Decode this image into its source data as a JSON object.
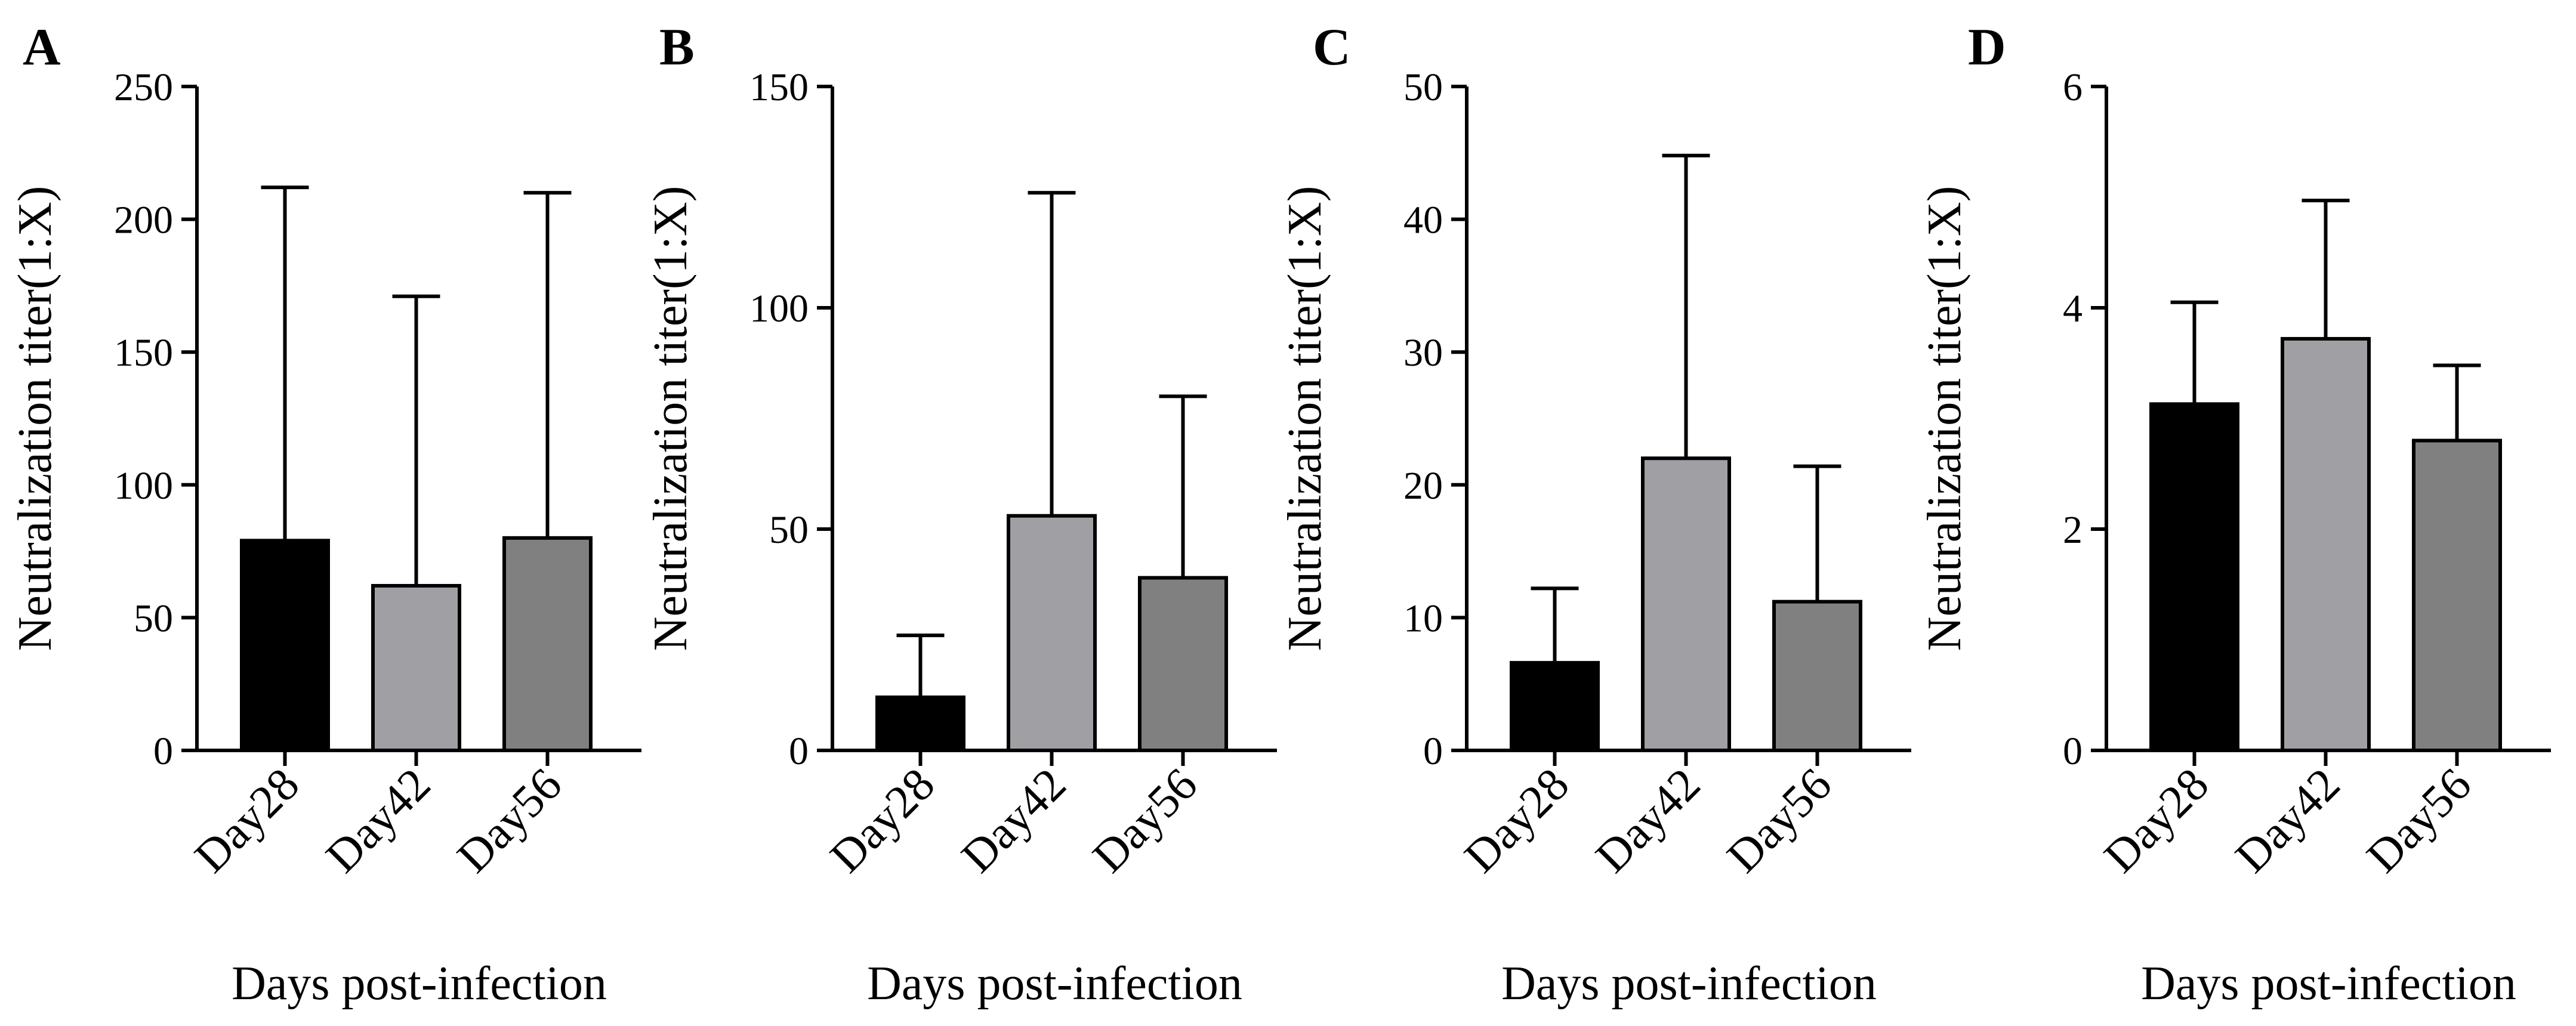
{
  "chart_data": [
    {
      "type": "bar",
      "panel": "A",
      "categories": [
        "Day28",
        "Day42",
        "Day56"
      ],
      "values": [
        79,
        62,
        80
      ],
      "errors": [
        133,
        109,
        130
      ],
      "colors": [
        "#000000",
        "#a0a0a4",
        "#808080"
      ],
      "ylim": [
        0,
        250
      ],
      "yticks": [
        0,
        50,
        100,
        150,
        200,
        250
      ],
      "xlabel": "Days post-infection",
      "ylabel": "Neutralization titer(1:X)"
    },
    {
      "type": "bar",
      "panel": "B",
      "categories": [
        "Day28",
        "Day42",
        "Day56"
      ],
      "values": [
        12,
        53,
        39
      ],
      "errors": [
        14,
        73,
        41
      ],
      "colors": [
        "#000000",
        "#a0a0a4",
        "#808080"
      ],
      "ylim": [
        0,
        150
      ],
      "yticks": [
        0,
        50,
        100,
        150
      ],
      "xlabel": "Days post-infection",
      "ylabel": "Neutralization titer(1:X)"
    },
    {
      "type": "bar",
      "panel": "C",
      "categories": [
        "Day28",
        "Day42",
        "Day56"
      ],
      "values": [
        6.6,
        22,
        11.2
      ],
      "errors": [
        5.6,
        22.8,
        10.2
      ],
      "colors": [
        "#000000",
        "#a0a0a4",
        "#808080"
      ],
      "ylim": [
        0,
        50
      ],
      "yticks": [
        0,
        10,
        20,
        30,
        40,
        50
      ],
      "xlabel": "Days post-infection",
      "ylabel": "Neutralization titer(1:X)"
    },
    {
      "type": "bar",
      "panel": "D",
      "categories": [
        "Day28",
        "Day42",
        "Day56"
      ],
      "values": [
        3.13,
        3.72,
        2.8
      ],
      "errors": [
        0.92,
        1.25,
        0.68
      ],
      "colors": [
        "#000000",
        "#a0a0a4",
        "#808080"
      ],
      "ylim": [
        0,
        6
      ],
      "yticks": [
        0,
        2,
        4,
        6
      ],
      "xlabel": "Days post-infection",
      "ylabel": "Neutralization titer(1:X)"
    }
  ]
}
